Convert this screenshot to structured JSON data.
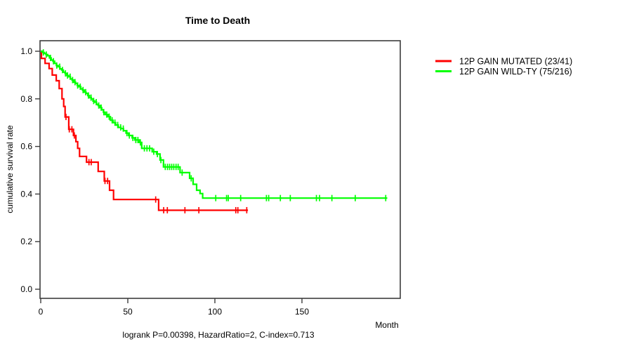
{
  "figure": {
    "title": "Time to Death",
    "footer": "logrank P=0.00398, HazardRatio=2, C-index=0.713"
  },
  "axes": {
    "xlabel": "Month",
    "ylabel": "cumulative survival rate",
    "x_ticks": [
      "0",
      "50",
      "100",
      "150"
    ],
    "y_ticks": [
      "0.0",
      "0.2",
      "0.4",
      "0.6",
      "0.8",
      "1.0"
    ]
  },
  "legend": {
    "entries": [
      {
        "label": "12P GAIN MUTATED (23/41)",
        "color": "#ff0000"
      },
      {
        "label": "12P GAIN WILD-TY (75/216)",
        "color": "#00ff00"
      }
    ]
  },
  "chart_data": {
    "type": "line",
    "subtype": "kaplan-meier-step",
    "title": "Time to Death",
    "xlabel": "Month",
    "ylabel": "cumulative survival rate",
    "xlim": [
      0,
      199
    ],
    "ylim": [
      0.0,
      1.0
    ],
    "grid": false,
    "legend_position": "right-outside",
    "stats": {
      "logrank_p": 0.00398,
      "hazard_ratio": 2,
      "c_index": 0.713
    },
    "series": [
      {
        "name": "12P GAIN MUTATED (23/41)",
        "color": "#ff0000",
        "events": 23,
        "n": 41,
        "end_time": 119,
        "steps": [
          [
            0,
            1.0
          ],
          [
            0.4,
            0.97
          ],
          [
            2.5,
            0.949
          ],
          [
            4.8,
            0.927
          ],
          [
            6.6,
            0.9
          ],
          [
            8.9,
            0.876
          ],
          [
            10.6,
            0.843
          ],
          [
            12.2,
            0.8
          ],
          [
            13.2,
            0.768
          ],
          [
            14,
            0.724
          ],
          [
            16.1,
            0.672
          ],
          [
            18.8,
            0.646
          ],
          [
            20.2,
            0.62
          ],
          [
            21.2,
            0.592
          ],
          [
            22.3,
            0.558
          ],
          [
            26.3,
            0.534
          ],
          [
            33,
            0.495
          ],
          [
            36.5,
            0.455
          ],
          [
            39.5,
            0.416
          ],
          [
            41.8,
            0.377
          ],
          [
            67.7,
            0.332
          ]
        ],
        "censors": [
          14.5,
          16.4,
          17.9,
          19.3,
          27.7,
          29,
          36.9,
          38.4,
          66,
          70.6,
          72.7,
          82.8,
          90.8,
          112,
          113.2,
          118.3
        ]
      },
      {
        "name": "12P GAIN WILD-TY (75/216)",
        "color": "#00ff00",
        "events": 75,
        "n": 216,
        "end_time": 199,
        "steps": [
          [
            0,
            1.0
          ],
          [
            1,
            0.995
          ],
          [
            2,
            0.991
          ],
          [
            3,
            0.986
          ],
          [
            4,
            0.981
          ],
          [
            5,
            0.972
          ],
          [
            6,
            0.963
          ],
          [
            7,
            0.958
          ],
          [
            8,
            0.949
          ],
          [
            9,
            0.94
          ],
          [
            10,
            0.935
          ],
          [
            11,
            0.926
          ],
          [
            12,
            0.921
          ],
          [
            13,
            0.912
          ],
          [
            14,
            0.907
          ],
          [
            15,
            0.898
          ],
          [
            16,
            0.893
          ],
          [
            17,
            0.884
          ],
          [
            18,
            0.879
          ],
          [
            19,
            0.87
          ],
          [
            20,
            0.865
          ],
          [
            21,
            0.856
          ],
          [
            22,
            0.851
          ],
          [
            23,
            0.842
          ],
          [
            24,
            0.837
          ],
          [
            25,
            0.828
          ],
          [
            26,
            0.823
          ],
          [
            27,
            0.814
          ],
          [
            28,
            0.805
          ],
          [
            29,
            0.8
          ],
          [
            30,
            0.791
          ],
          [
            31,
            0.786
          ],
          [
            32,
            0.777
          ],
          [
            33,
            0.772
          ],
          [
            34,
            0.763
          ],
          [
            35,
            0.754
          ],
          [
            36,
            0.744
          ],
          [
            37,
            0.734
          ],
          [
            38.5,
            0.725
          ],
          [
            40,
            0.71
          ],
          [
            41.5,
            0.7
          ],
          [
            43,
            0.69
          ],
          [
            44.5,
            0.68
          ],
          [
            46,
            0.675
          ],
          [
            47.5,
            0.666
          ],
          [
            49,
            0.656
          ],
          [
            50.5,
            0.646
          ],
          [
            52.5,
            0.636
          ],
          [
            54,
            0.627
          ],
          [
            56.5,
            0.617
          ],
          [
            58,
            0.592
          ],
          [
            64,
            0.578
          ],
          [
            66.5,
            0.568
          ],
          [
            68.5,
            0.543
          ],
          [
            70.5,
            0.514
          ],
          [
            80,
            0.49
          ],
          [
            85.5,
            0.466
          ],
          [
            87.5,
            0.441
          ],
          [
            89.5,
            0.416
          ],
          [
            91.5,
            0.402
          ],
          [
            93,
            0.383
          ]
        ],
        "censors": [
          1.5,
          3.2,
          5.6,
          7.3,
          9.2,
          10.9,
          12.5,
          14.2,
          15.4,
          16.9,
          18.3,
          19.7,
          21.2,
          22.7,
          24.3,
          25.8,
          27.4,
          28.9,
          30.4,
          31.9,
          33.3,
          34.7,
          36.2,
          37.9,
          39.3,
          41,
          42.6,
          44.2,
          45.9,
          47.4,
          49.5,
          50.9,
          52.9,
          54.6,
          55.8,
          57.2,
          59.5,
          61,
          62.5,
          64.9,
          67,
          69,
          71.5,
          72.8,
          74,
          75.2,
          76.4,
          77.7,
          78.9,
          81.2,
          86.4,
          100.5,
          106.7,
          107.7,
          114.8,
          129.6,
          130.9,
          137.6,
          143.3,
          158.3,
          160.1,
          167.2,
          180.6,
          198.1
        ]
      }
    ]
  }
}
